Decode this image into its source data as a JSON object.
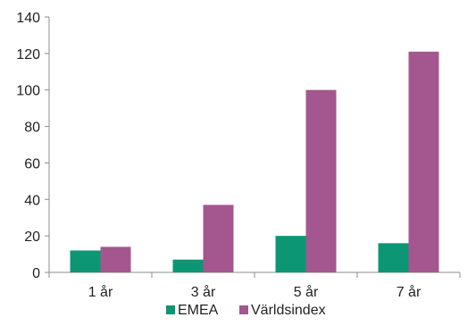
{
  "chart_data": {
    "type": "bar",
    "categories": [
      "1 år",
      "3 år",
      "5 år",
      "7 år"
    ],
    "series": [
      {
        "name": "EMEA",
        "color": "#0d9673",
        "values": [
          12,
          7,
          20,
          16
        ]
      },
      {
        "name": "Världsindex",
        "color": "#a4578f",
        "values": [
          14,
          37,
          100,
          121
        ]
      }
    ],
    "ylim": [
      0,
      140
    ],
    "yticks": [
      0,
      20,
      40,
      60,
      80,
      100,
      120,
      140
    ],
    "grid": false,
    "legend": "bottom-center"
  }
}
